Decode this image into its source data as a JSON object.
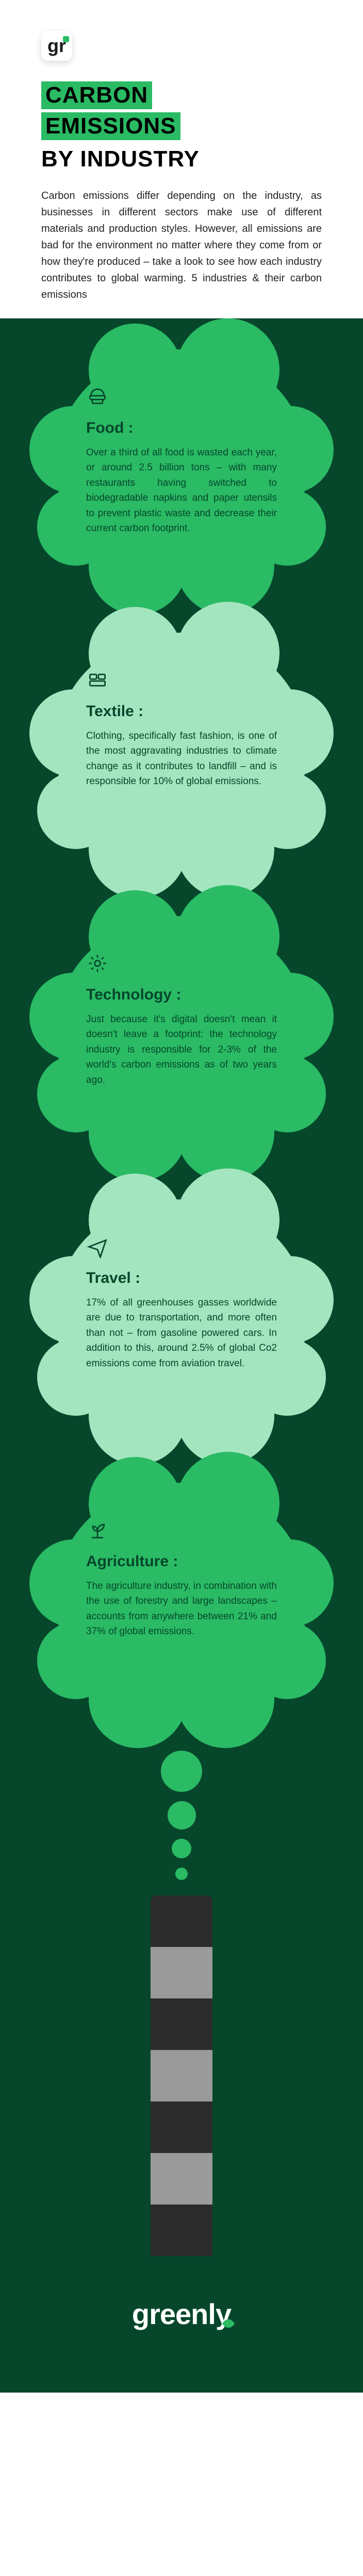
{
  "header": {
    "logo_text": "gr",
    "title_line1": "CARBON",
    "title_line2": "EMISSIONS",
    "title_line3": "BY INDUSTRY",
    "intro": "Carbon emissions differ depending on the industry, as businesses in different sectors make use of different materials and production styles. However, all emissions are bad for the environment no matter where they come from or how they're produced – take a look to see how each industry contributes to global warming. 5 industries & their carbon emissions"
  },
  "colors": {
    "page_bg": "#ffffff",
    "body_bg": "#06472c",
    "accent_green": "#2abb64",
    "light_green": "#a3e5be",
    "dark_text": "#06472c",
    "chimney_dark": "#2b2b2b",
    "chimney_light": "#9a9a9a",
    "footer_text": "#ffffff"
  },
  "sections": [
    {
      "id": "food",
      "icon": "food-icon",
      "title": "Food :",
      "body": "Over a third of all food is wasted each year, or around 2.5 billion tons – with many restaurants having switched to biodegradable napkins and paper utensils to prevent plastic waste and decrease their current carbon footprint.",
      "variant": "dark"
    },
    {
      "id": "textile",
      "icon": "textile-icon",
      "title": "Textile :",
      "body": "Clothing, specifically fast fashion, is one of the most aggravating industries to climate change as it contributes to landfill – and is responsible for 10% of global emissions.",
      "variant": "light"
    },
    {
      "id": "technology",
      "icon": "technology-icon",
      "title": "Technology :",
      "body": "Just because it's digital doesn't mean it doesn't leave a footprint: the technology industry is responsible for 2-3% of the world's carbon emissions as of two years ago.",
      "variant": "dark"
    },
    {
      "id": "travel",
      "icon": "travel-icon",
      "title": "Travel :",
      "body": "17% of all greenhouses gasses worldwide are due to transportation, and more often than not – from gasoline powered cars. In addition to this, around 2.5% of global Co2 emissions come from aviation travel.",
      "variant": "light"
    },
    {
      "id": "agriculture",
      "icon": "agriculture-icon",
      "title": "Agriculture :",
      "body": "The agriculture industry, in combination with the use of forestry and large landscapes – accounts from anywhere between 21% and 37% of global emissions.",
      "variant": "dark"
    }
  ],
  "trail_dots": [
    {
      "size": 80,
      "color": "#2abb64"
    },
    {
      "size": 55,
      "color": "#2abb64"
    },
    {
      "size": 38,
      "color": "#2abb64"
    },
    {
      "size": 24,
      "color": "#2abb64"
    }
  ],
  "chimney_segments": [
    "dark",
    "light",
    "dark",
    "light",
    "dark",
    "light",
    "dark"
  ],
  "footer": {
    "brand": "greenly"
  }
}
